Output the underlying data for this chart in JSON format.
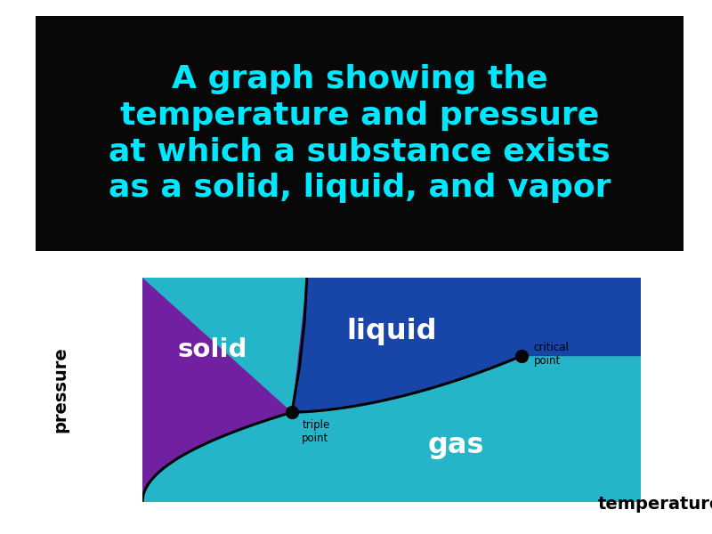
{
  "bg_color": "#ffffff",
  "title_box_color": "#080808",
  "title_text_line1": "A graph showing the",
  "title_text_line2": "temperature and pressure",
  "title_text_line3": "at which a substance exists",
  "title_text_line4": "as a solid, liquid, and vapor",
  "title_text_color": "#00e8ff",
  "title_fontsize": 26,
  "phase_solid_color": "#7020a0",
  "phase_liquid_color": "#1845a8",
  "phase_gas_color": "#1890a8",
  "phase_gas_light_color": "#25b5c8",
  "curve_color": "#000000",
  "label_solid": "solid",
  "label_liquid": "liquid",
  "label_gas": "gas",
  "label_triple": "triple\npoint",
  "label_critical": "critical\npoint",
  "label_pressure": "pressure",
  "label_temperature": "temperature",
  "label_color": "#ffffff",
  "axis_label_color": "#000000",
  "point_color": "#050505",
  "triple_point": [
    0.3,
    0.4
  ],
  "critical_point": [
    0.76,
    0.65
  ]
}
